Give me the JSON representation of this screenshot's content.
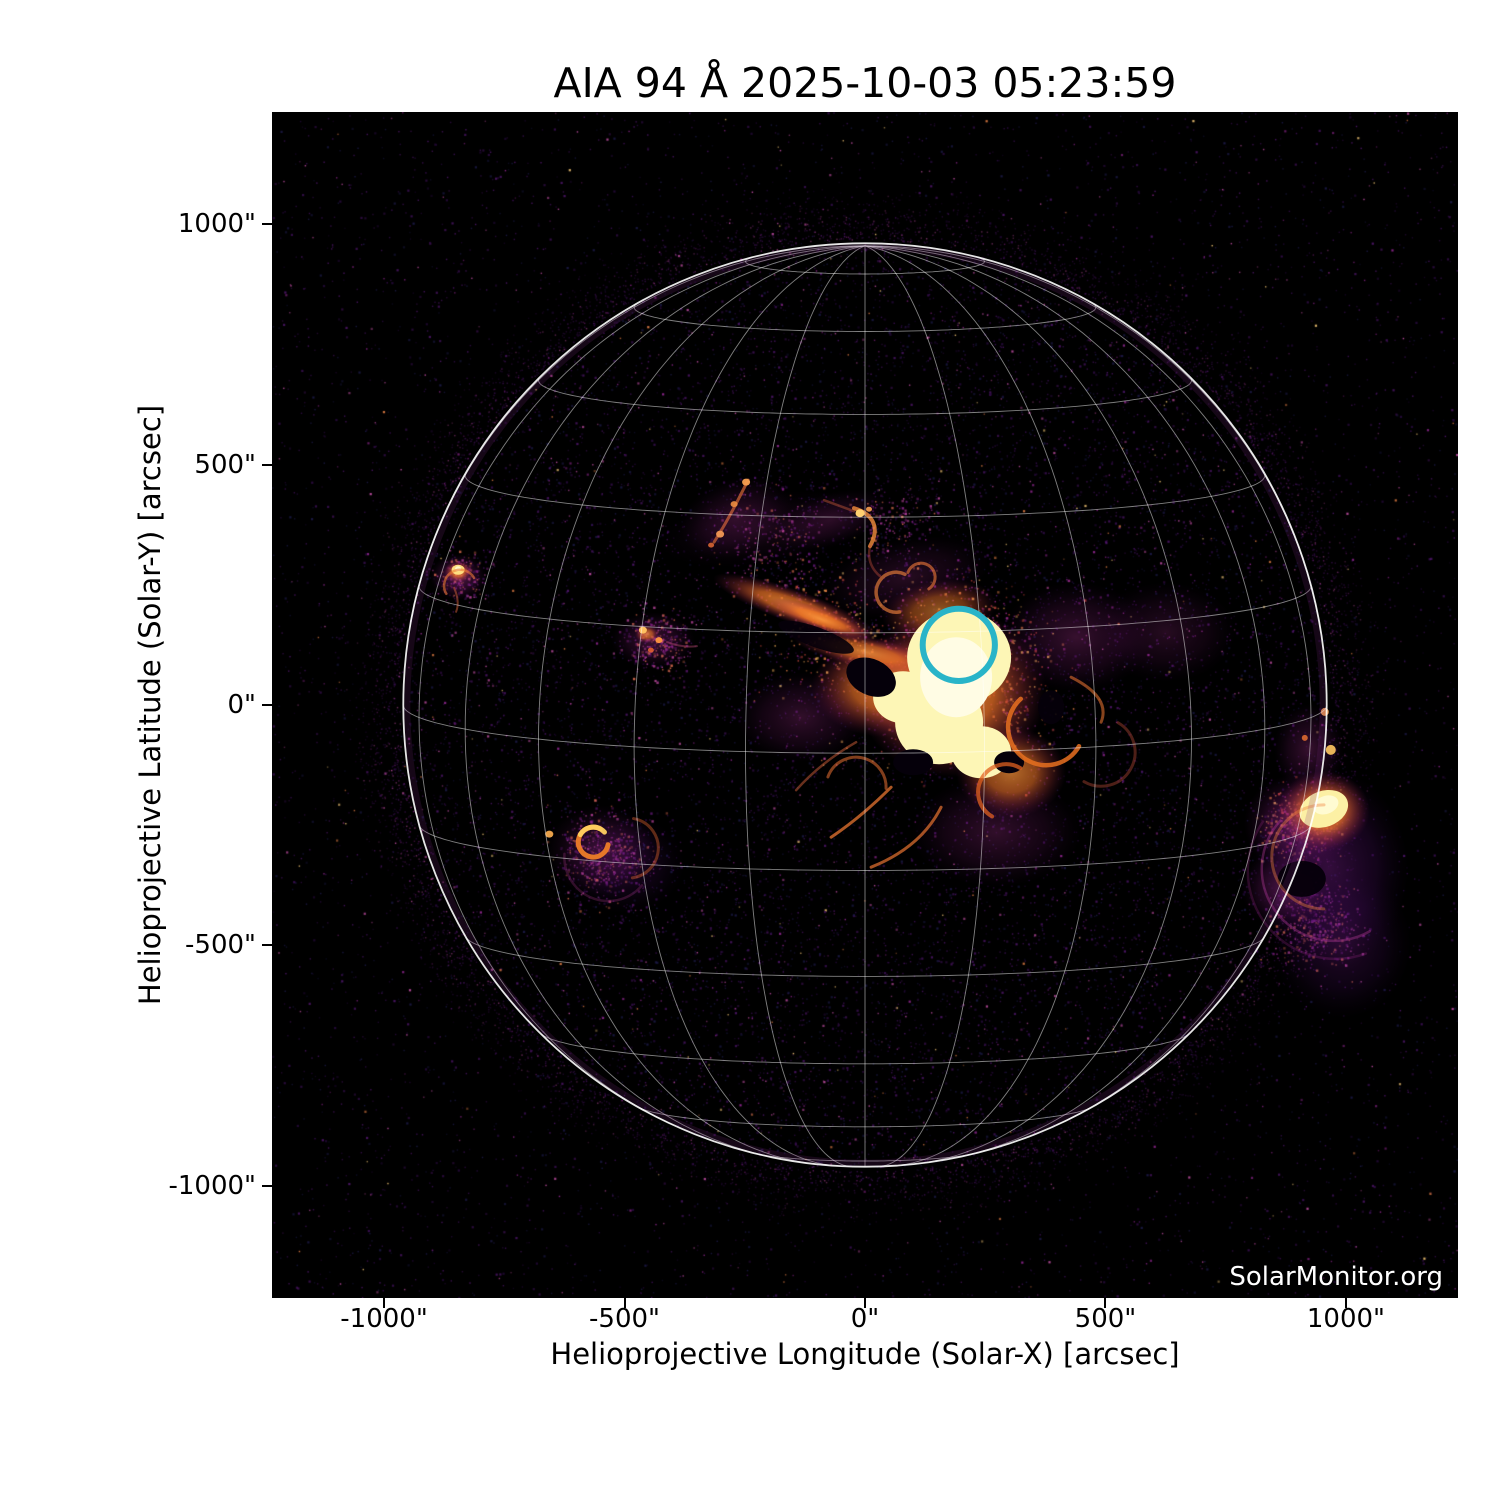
{
  "page": {
    "background_color": "#ffffff"
  },
  "chart": {
    "title": "AIA 94 Å 2025-10-03 05:23:59",
    "watermark": "SolarMonitor.org",
    "x_axis": {
      "label": "Helioprojective Longitude (Solar-X) [arcsec]",
      "ticks": [
        {
          "value": -1000,
          "label": "-1000\""
        },
        {
          "value": -500,
          "label": "-500\""
        },
        {
          "value": 0,
          "label": "0\""
        },
        {
          "value": 500,
          "label": "500\""
        },
        {
          "value": 1000,
          "label": "1000\""
        }
      ]
    },
    "y_axis": {
      "label": "Helioprojective Latitude (Solar-Y) [arcsec]",
      "ticks": [
        {
          "value": 1000,
          "label": "1000\""
        },
        {
          "value": 500,
          "label": "500\""
        },
        {
          "value": 0,
          "label": "0\""
        },
        {
          "value": -500,
          "label": "-500\""
        },
        {
          "value": -1000,
          "label": "-1000\""
        }
      ]
    }
  },
  "chart_data": {
    "type": "heatmap",
    "title": "AIA 94 Å 2025-10-03 05:23:59",
    "instrument": "SDO/AIA",
    "wavelength_angstrom": 94,
    "observation_time": "2025-10-03 05:23:59",
    "xlabel": "Helioprojective Longitude (Solar-X) [arcsec]",
    "ylabel": "Helioprojective Latitude (Solar-Y) [arcsec]",
    "xlim": [
      -1233,
      1233
    ],
    "ylim": [
      -1233,
      1233
    ],
    "grid": "heliographic graticule on solar disk",
    "background_color": "#000000",
    "colormap": "black-purple-orange-paleyellow (magma-like)",
    "solar_disk": {
      "center_arcsec": [
        0,
        0
      ],
      "radius_arcsec": 960,
      "limb_color": "#ffffff"
    },
    "graticule": {
      "spacing_deg": 15,
      "b0_deg": 6,
      "color": "rgba(255,255,255,0.5)"
    },
    "marker_circle": {
      "x_arcsec": 195,
      "y_arcsec": 125,
      "radius_arcsec": 75,
      "color": "#29b4c8",
      "stroke_width_px": 6
    },
    "active_regions": [
      {
        "name": "central-bright-complex",
        "x_arcsec": 179,
        "y_arcsec": 89,
        "intensity": "saturated-bright"
      },
      {
        "name": "west-limb-region",
        "x_arcsec": 954,
        "y_arcsec": -216,
        "intensity": "bright"
      },
      {
        "name": "east-small-region",
        "x_arcsec": -846,
        "y_arcsec": 277,
        "intensity": "moderate"
      },
      {
        "name": "southeast-ring-region",
        "x_arcsec": -565,
        "y_arcsec": -285,
        "intensity": "moderate"
      },
      {
        "name": "east-central-cluster",
        "x_arcsec": -441,
        "y_arcsec": 139,
        "intensity": "faint"
      },
      {
        "name": "north-filament-chain",
        "x_arcsec": -268,
        "y_arcsec": 401,
        "intensity": "faint"
      },
      {
        "name": "north-curl",
        "x_arcsec": 2,
        "y_arcsec": 376,
        "intensity": "faint"
      }
    ]
  }
}
